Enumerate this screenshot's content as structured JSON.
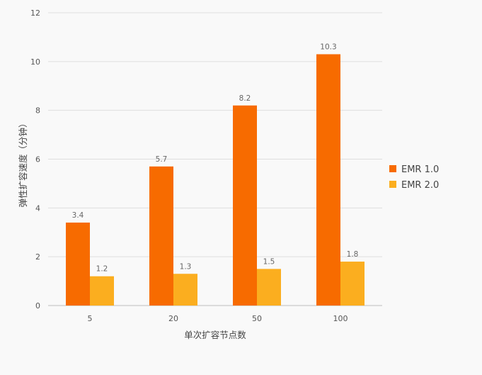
{
  "chart_data": {
    "type": "bar",
    "title": "",
    "xlabel": "单次扩容节点数",
    "ylabel": "弹性扩容速度（分钟）",
    "categories": [
      "5",
      "20",
      "50",
      "100"
    ],
    "series": [
      {
        "name": "EMR 1.0",
        "values": [
          3.4,
          5.7,
          8.2,
          10.3
        ],
        "labels": [
          "3.4",
          "5.7",
          "8.2",
          "10.3"
        ],
        "color": "#f76b00"
      },
      {
        "name": "EMR 2.0",
        "values": [
          1.2,
          1.3,
          1.5,
          1.8
        ],
        "labels": [
          "1.2",
          "1.3",
          "1.5",
          "1.8"
        ],
        "color": "#fbae1f"
      }
    ],
    "ylim": [
      0,
      12
    ],
    "yticks": [
      "0",
      "2",
      "4",
      "6",
      "8",
      "10",
      "12"
    ],
    "grid": true,
    "legend_position": "right"
  }
}
